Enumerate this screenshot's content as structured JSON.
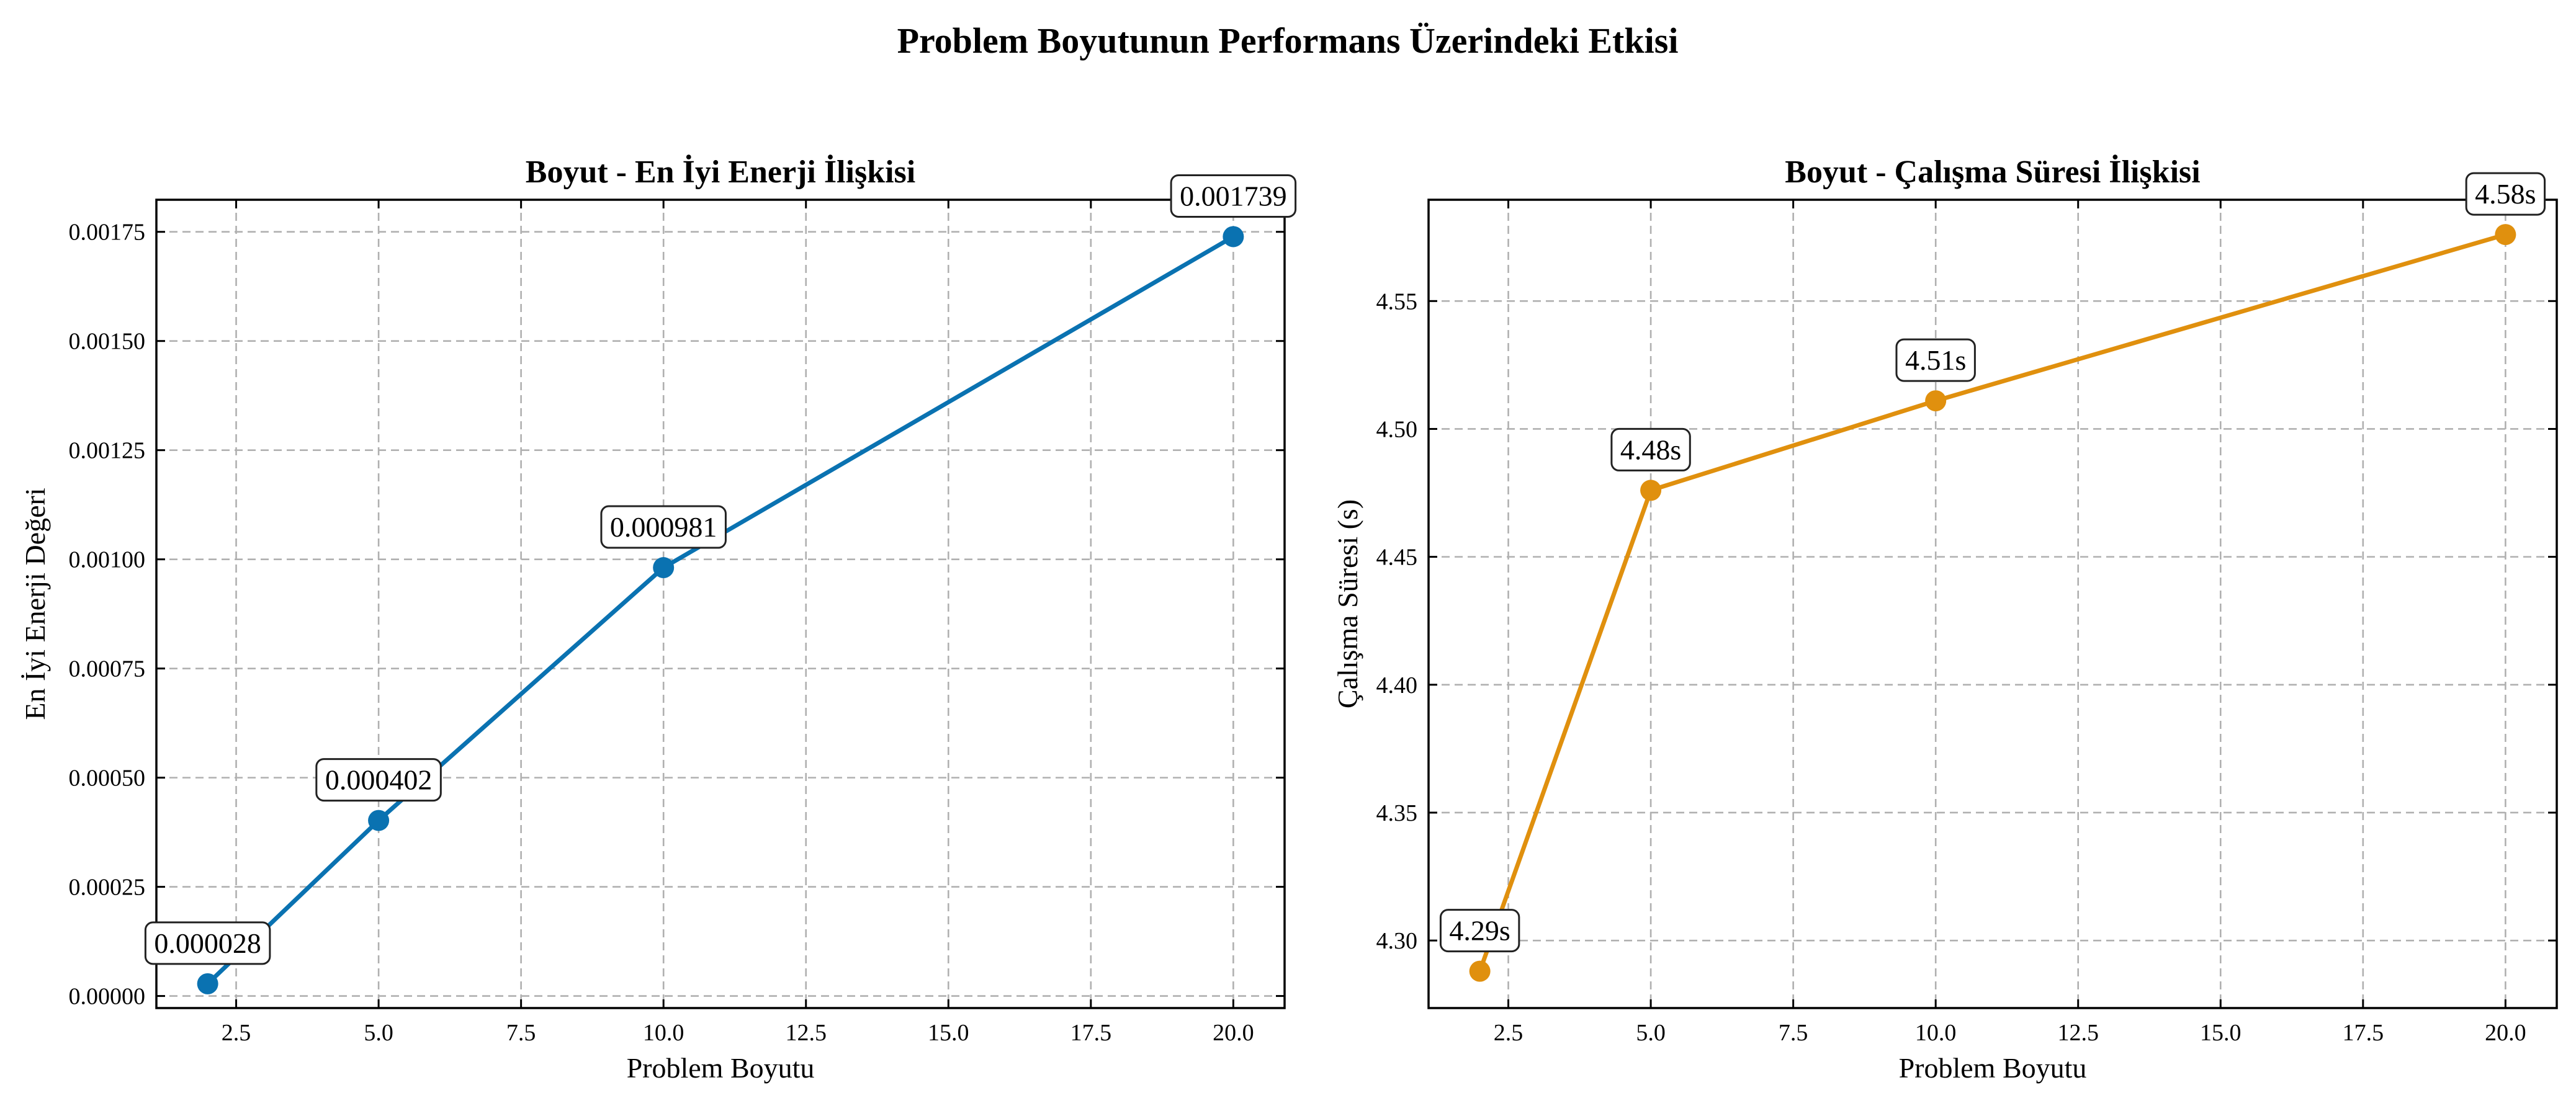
{
  "figure_title": "Problem Boyutunun Performans Üzerindeki Etkisi",
  "colors": {
    "energy_series": "#0a72b1",
    "time_series": "#e0900e"
  },
  "chart_data": [
    {
      "type": "line",
      "title": "Boyut - En İyi Enerji İlişkisi",
      "xlabel": "Problem Boyutu",
      "ylabel": "En İyi Enerji Değeri",
      "x": [
        2,
        5,
        10,
        20
      ],
      "values": [
        2.8e-05,
        0.000402,
        0.000981,
        0.001739
      ],
      "point_labels": [
        "0.000028",
        "0.000402",
        "0.000981",
        "0.001739"
      ],
      "xlim": [
        1.1,
        20.9
      ],
      "ylim": [
        -2.76e-05,
        0.0018235
      ],
      "xticks": [
        2.5,
        5.0,
        7.5,
        10.0,
        12.5,
        15.0,
        17.5,
        20.0
      ],
      "xtick_labels": [
        "2.5",
        "5.0",
        "7.5",
        "10.0",
        "12.5",
        "15.0",
        "17.5",
        "20.0"
      ],
      "yticks": [
        0,
        0.00025,
        0.0005,
        0.00075,
        0.001,
        0.00125,
        0.0015,
        0.00175
      ],
      "ytick_labels": [
        "0.00000",
        "0.00025",
        "0.00050",
        "0.00075",
        "0.00100",
        "0.00125",
        "0.00150",
        "0.00175"
      ],
      "grid": true,
      "color_key": "energy_series"
    },
    {
      "type": "line",
      "title": "Boyut - Çalışma Süresi İlişkisi",
      "xlabel": "Problem Boyutu",
      "ylabel": "Çalışma Süresi (s)",
      "x": [
        2,
        5,
        10,
        20
      ],
      "values": [
        4.288,
        4.476,
        4.511,
        4.576
      ],
      "point_labels": [
        "4.29s",
        "4.48s",
        "4.51s",
        "4.58s"
      ],
      "xlim": [
        1.1,
        20.9
      ],
      "ylim": [
        4.2736,
        4.5896
      ],
      "xticks": [
        2.5,
        5.0,
        7.5,
        10.0,
        12.5,
        15.0,
        17.5,
        20.0
      ],
      "xtick_labels": [
        "2.5",
        "5.0",
        "7.5",
        "10.0",
        "12.5",
        "15.0",
        "17.5",
        "20.0"
      ],
      "yticks": [
        4.3,
        4.35,
        4.4,
        4.45,
        4.5,
        4.55
      ],
      "ytick_labels": [
        "4.30",
        "4.35",
        "4.40",
        "4.45",
        "4.50",
        "4.55"
      ],
      "grid": true,
      "color_key": "time_series"
    }
  ]
}
